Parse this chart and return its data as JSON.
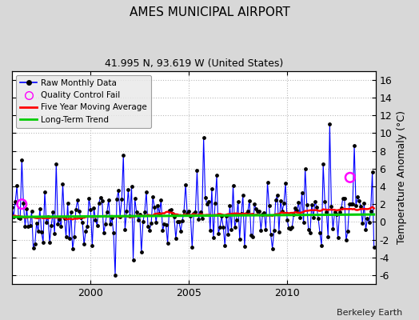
{
  "title": "AMES MUNICIPAL AIRPORT",
  "subtitle": "41.995 N, 93.619 W (United States)",
  "ylabel": "Temperature Anomaly (°C)",
  "attribution": "Berkeley Earth",
  "ylim": [
    -7,
    17
  ],
  "yticks": [
    -6,
    -4,
    -2,
    0,
    2,
    4,
    6,
    8,
    10,
    12,
    14,
    16
  ],
  "xlim_start": 1996.0,
  "xlim_end": 2014.5,
  "xticks": [
    2000,
    2005,
    2010
  ],
  "background_color": "#d8d8d8",
  "plot_bg_color": "#ffffff",
  "raw_line_color": "#0000ff",
  "raw_dot_color": "#000000",
  "ma_color": "#ff0000",
  "trend_color": "#00cc00",
  "qc_fail_color": "#ff00ff",
  "legend_bg": "#e8e8e8",
  "grid_color": "#bbbbbb",
  "seed": 42,
  "n_months": 222,
  "start_year": 1996,
  "start_month": 1,
  "long_term_trend_value": 0.7,
  "long_term_trend_slope": 0.015
}
